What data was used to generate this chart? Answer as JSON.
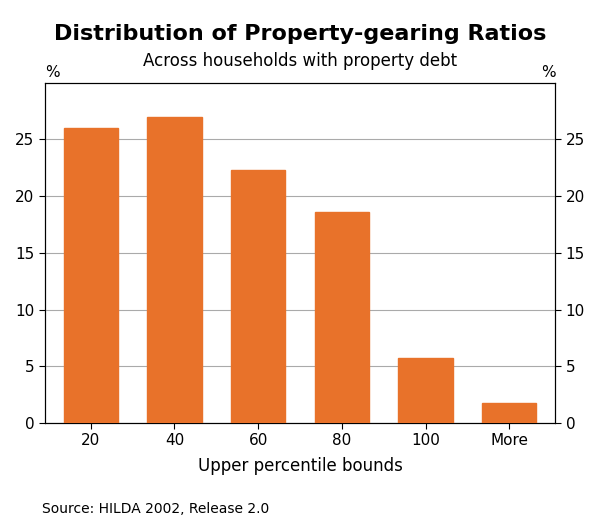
{
  "title": "Distribution of Property-gearing Ratios",
  "subtitle": "Across households with property debt",
  "categories": [
    "20",
    "40",
    "60",
    "80",
    "100",
    "More"
  ],
  "values": [
    26.0,
    27.0,
    22.3,
    18.6,
    5.7,
    1.8
  ],
  "bar_color": "#E8722A",
  "xlabel": "Upper percentile bounds",
  "pct_label": "%",
  "ylim": [
    0,
    30
  ],
  "yticks": [
    0,
    5,
    10,
    15,
    20,
    25
  ],
  "source": "Source: HILDA 2002, Release 2.0",
  "background_color": "#ffffff",
  "title_fontsize": 16,
  "subtitle_fontsize": 12,
  "xlabel_fontsize": 12,
  "tick_fontsize": 11,
  "source_fontsize": 10,
  "grid_color": "#aaaaaa",
  "grid_linewidth": 0.8
}
